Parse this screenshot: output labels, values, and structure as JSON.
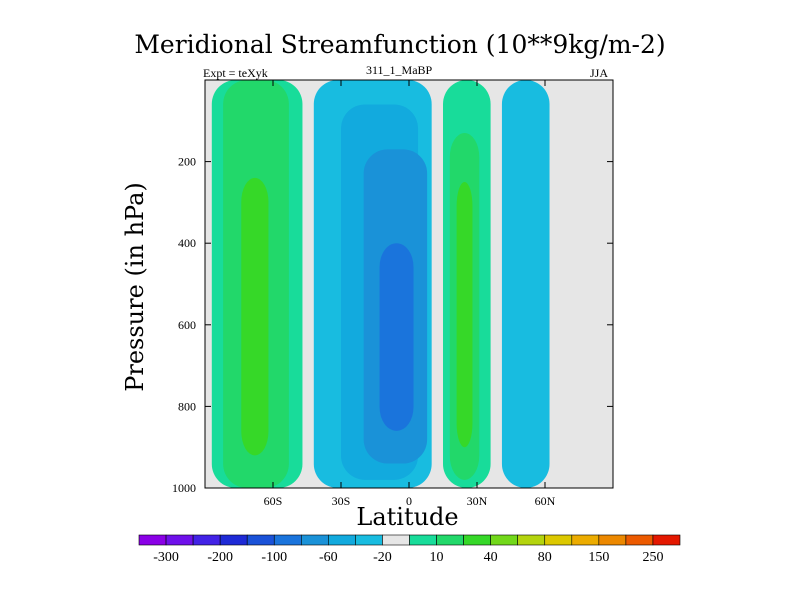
{
  "header": {
    "title": "Meridional Streamfunction (10**9kg/m-2)",
    "left_label": "Expt = teXyk",
    "center_label": "311_1_MaBP",
    "right_label": "JJA"
  },
  "chart_data": {
    "type": "heatmap",
    "title": "Meridional Streamfunction (10**9kg/m-2)",
    "xlabel": "Latitude",
    "ylabel": "Pressure (in hPa)",
    "x_ticks": [
      "60S",
      "30S",
      "0",
      "30N",
      "60N"
    ],
    "x_tick_values": [
      -60,
      -30,
      0,
      30,
      60
    ],
    "xlim": [
      -90,
      90
    ],
    "y_ticks": [
      "200",
      "400",
      "600",
      "800",
      "1000"
    ],
    "y_tick_values": [
      200,
      400,
      600,
      800,
      1000
    ],
    "ylim": [
      1000,
      0
    ],
    "y_reversed": true,
    "colorbar": {
      "labels": [
        "-300",
        "-200",
        "-100",
        "-60",
        "-20",
        "10",
        "40",
        "80",
        "150",
        "250"
      ],
      "colors": [
        "#8a00e6",
        "#6e10ea",
        "#4222e6",
        "#1e2ad6",
        "#1a52d8",
        "#1a74dc",
        "#1a92d8",
        "#12aade",
        "#18bce0",
        "#e6e6e6",
        "#18dc9a",
        "#22d86a",
        "#36d828",
        "#72d81a",
        "#b4d40e",
        "#dcc800",
        "#ecac00",
        "#ec8800",
        "#ec5a00",
        "#e41800"
      ]
    },
    "background_color": "#e6e6e6",
    "cells": [
      {
        "lat": [
          -87,
          -47
        ],
        "lev": [
          0,
          1000
        ],
        "level": "10"
      },
      {
        "lat": [
          -82,
          -53
        ],
        "lev": [
          0,
          1000
        ],
        "level": "40"
      },
      {
        "lat": [
          -74,
          -62
        ],
        "lev": [
          240,
          920
        ],
        "level": "80"
      },
      {
        "lat": [
          -42,
          10
        ],
        "lev": [
          0,
          1000
        ],
        "level": "-20"
      },
      {
        "lat": [
          -30,
          4
        ],
        "lev": [
          60,
          980
        ],
        "level": "-60"
      },
      {
        "lat": [
          -20,
          8
        ],
        "lev": [
          170,
          940
        ],
        "level": "-100"
      },
      {
        "lat": [
          -13,
          2
        ],
        "lev": [
          400,
          860
        ],
        "level": "-200"
      },
      {
        "lat": [
          15,
          36
        ],
        "lev": [
          0,
          1000
        ],
        "level": "10"
      },
      {
        "lat": [
          18,
          31
        ],
        "lev": [
          130,
          980
        ],
        "level": "40"
      },
      {
        "lat": [
          21,
          28
        ],
        "lev": [
          250,
          900
        ],
        "level": "80"
      },
      {
        "lat": [
          41,
          62
        ],
        "lev": [
          0,
          1000
        ],
        "level": "-20"
      }
    ]
  }
}
